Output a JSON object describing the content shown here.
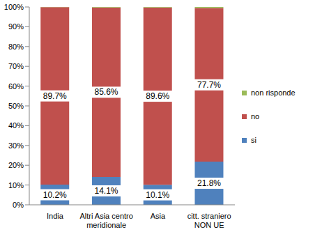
{
  "chart_data": {
    "type": "bar",
    "stacked": true,
    "categories": [
      "India",
      "Altri Asia centro meridionale",
      "Asia",
      "citt. straniero NON UE"
    ],
    "series": [
      {
        "name": "si",
        "color": "#4f81bd",
        "values": [
          10.2,
          14.1,
          10.1,
          21.8
        ],
        "data_labels": true,
        "value_labels": [
          "10.2%",
          "14.1%",
          "10.1%",
          "21.8%"
        ]
      },
      {
        "name": "no",
        "color": "#c0504d",
        "values": [
          89.7,
          85.6,
          89.6,
          77.7
        ],
        "data_labels": true,
        "value_labels": [
          "89.7%",
          "85.6%",
          "89.6%",
          "77.7%"
        ]
      },
      {
        "name": "non risponde",
        "color": "#9bbb59",
        "values": [
          0.1,
          0.3,
          0.3,
          0.5
        ]
      }
    ],
    "ylim": [
      0,
      100
    ],
    "yticks": [
      {
        "value": 0,
        "label": "0%"
      },
      {
        "value": 10,
        "label": "10%"
      },
      {
        "value": 20,
        "label": "20%"
      },
      {
        "value": 30,
        "label": "30%"
      },
      {
        "value": 40,
        "label": "40%"
      },
      {
        "value": 50,
        "label": "50%"
      },
      {
        "value": 60,
        "label": "60%"
      },
      {
        "value": 70,
        "label": "70%"
      },
      {
        "value": 80,
        "label": "80%"
      },
      {
        "value": 90,
        "label": "90%"
      },
      {
        "value": 100,
        "label": "100%"
      }
    ],
    "grid": false,
    "legend": "right"
  }
}
